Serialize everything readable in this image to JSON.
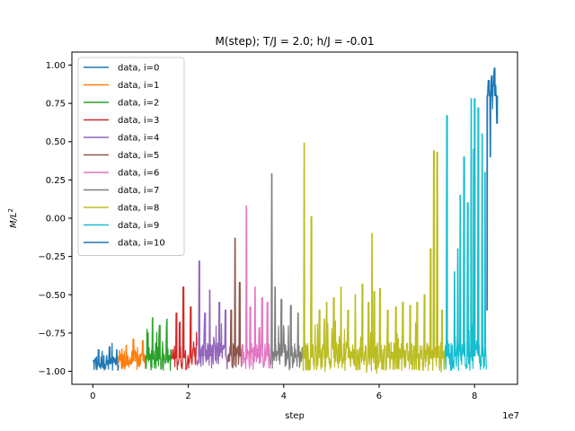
{
  "chart_data": {
    "type": "line",
    "title": "M(step); T/J = 2.0; h/J = -0.01",
    "xlabel": "step",
    "ylabel": "M/L²",
    "x_offset_text": "1e7",
    "x_scale": 10000000,
    "xlim": [
      -4400000,
      89000000
    ],
    "ylim": [
      -1.085,
      1.085
    ],
    "x_ticks": [
      0,
      20000000,
      40000000,
      60000000,
      80000000
    ],
    "x_tick_labels": [
      "0",
      "2",
      "4",
      "6",
      "8"
    ],
    "y_ticks": [
      -1.0,
      -0.75,
      -0.5,
      -0.25,
      0.0,
      0.25,
      0.5,
      0.75,
      1.0
    ],
    "y_tick_labels": [
      "−1.00",
      "−0.75",
      "−0.50",
      "−0.25",
      "0.00",
      "0.25",
      "0.50",
      "0.75",
      "1.00"
    ],
    "grid": false,
    "legend_position": "top-left",
    "series": [
      {
        "name": "data, i=0",
        "color": "#1f77b4",
        "x_range": [
          0,
          5400000
        ],
        "base": -0.95,
        "noise": 0.06,
        "spikes": [
          [
            1200000,
            -0.86
          ],
          [
            3500000,
            -0.84
          ],
          [
            5000000,
            -0.86
          ]
        ]
      },
      {
        "name": "data, i=1",
        "color": "#ff7f0e",
        "x_range": [
          5400000,
          11000000
        ],
        "base": -0.93,
        "noise": 0.07,
        "spikes": [
          [
            8500000,
            -0.79
          ],
          [
            10500000,
            -0.8
          ],
          [
            7000000,
            -0.83
          ]
        ]
      },
      {
        "name": "data, i=2",
        "color": "#2ca02c",
        "x_range": [
          11000000,
          16500000
        ],
        "base": -0.92,
        "noise": 0.08,
        "spikes": [
          [
            12500000,
            -0.65
          ],
          [
            15500000,
            -0.66
          ],
          [
            14000000,
            -0.7
          ],
          [
            11500000,
            -0.75
          ]
        ]
      },
      {
        "name": "data, i=3",
        "color": "#d62728",
        "x_range": [
          16500000,
          21800000
        ],
        "base": -0.91,
        "noise": 0.08,
        "spikes": [
          [
            17500000,
            -0.62
          ],
          [
            19000000,
            -0.45
          ],
          [
            20500000,
            -0.58
          ],
          [
            18200000,
            -0.68
          ]
        ]
      },
      {
        "name": "data, i=4",
        "color": "#9467bd",
        "x_range": [
          21800000,
          28400000
        ],
        "base": -0.9,
        "noise": 0.09,
        "spikes": [
          [
            22300000,
            -0.28
          ],
          [
            24500000,
            -0.47
          ],
          [
            26500000,
            -0.55
          ],
          [
            27800000,
            -0.6
          ],
          [
            23500000,
            -0.62
          ]
        ]
      },
      {
        "name": "data, i=5",
        "color": "#8c564b",
        "x_range": [
          28400000,
          31200000
        ],
        "base": -0.9,
        "noise": 0.08,
        "spikes": [
          [
            29800000,
            -0.13
          ],
          [
            30800000,
            -0.42
          ],
          [
            29000000,
            -0.6
          ]
        ]
      },
      {
        "name": "data, i=6",
        "color": "#e377c2",
        "x_range": [
          31200000,
          37200000
        ],
        "base": -0.9,
        "noise": 0.09,
        "spikes": [
          [
            32200000,
            0.08
          ],
          [
            34000000,
            -0.45
          ],
          [
            35500000,
            -0.52
          ],
          [
            33000000,
            -0.58
          ],
          [
            36600000,
            -0.55
          ]
        ]
      },
      {
        "name": "data, i=7",
        "color": "#7f7f7f",
        "x_range": [
          37200000,
          44000000
        ],
        "base": -0.9,
        "noise": 0.09,
        "spikes": [
          [
            37500000,
            0.29
          ],
          [
            39500000,
            -0.53
          ],
          [
            41500000,
            -0.57
          ],
          [
            43000000,
            -0.62
          ],
          [
            38200000,
            -0.45
          ]
        ]
      },
      {
        "name": "data, i=8",
        "color": "#bcbd22",
        "x_range": [
          44000000,
          73800000
        ],
        "base": -0.91,
        "noise": 0.1,
        "spikes": [
          [
            44300000,
            0.49
          ],
          [
            45800000,
            0.01
          ],
          [
            47500000,
            -0.6
          ],
          [
            49000000,
            -0.55
          ],
          [
            50500000,
            -0.52
          ],
          [
            52000000,
            -0.45
          ],
          [
            53500000,
            -0.6
          ],
          [
            55000000,
            -0.5
          ],
          [
            56500000,
            -0.43
          ],
          [
            57800000,
            -0.55
          ],
          [
            59000000,
            -0.48
          ],
          [
            60200000,
            -0.46
          ],
          [
            61800000,
            -0.6
          ],
          [
            63500000,
            -0.58
          ],
          [
            65000000,
            -0.55
          ],
          [
            66500000,
            -0.57
          ],
          [
            68000000,
            -0.55
          ],
          [
            69500000,
            -0.5
          ],
          [
            70800000,
            -0.2
          ],
          [
            71500000,
            0.44
          ],
          [
            72200000,
            0.43
          ],
          [
            73200000,
            -0.6
          ],
          [
            58500000,
            -0.1
          ],
          [
            48500000,
            -0.66
          ]
        ]
      },
      {
        "name": "data, i=9",
        "color": "#17becf",
        "x_range": [
          73800000,
          82500000
        ],
        "base": -0.9,
        "noise": 0.1,
        "spikes": [
          [
            74200000,
            0.67
          ],
          [
            75800000,
            -0.35
          ],
          [
            77000000,
            0.15
          ],
          [
            77800000,
            0.4
          ],
          [
            78600000,
            0.1
          ],
          [
            79300000,
            0.78
          ],
          [
            80000000,
            0.78
          ],
          [
            80800000,
            0.72
          ],
          [
            81600000,
            0.55
          ],
          [
            82200000,
            0.3
          ],
          [
            76500000,
            -0.2
          ],
          [
            79800000,
            0.45
          ]
        ]
      },
      {
        "name": "data, i=10",
        "color": "#1f77b4",
        "x_range": [
          82500000,
          84800000
        ],
        "base": 0.8,
        "noise": 0.1,
        "spikes": [
          [
            82600000,
            -0.6
          ],
          [
            83000000,
            0.9
          ],
          [
            83600000,
            0.93
          ],
          [
            84200000,
            0.98
          ],
          [
            84700000,
            0.62
          ],
          [
            83300000,
            0.4
          ]
        ]
      }
    ]
  }
}
